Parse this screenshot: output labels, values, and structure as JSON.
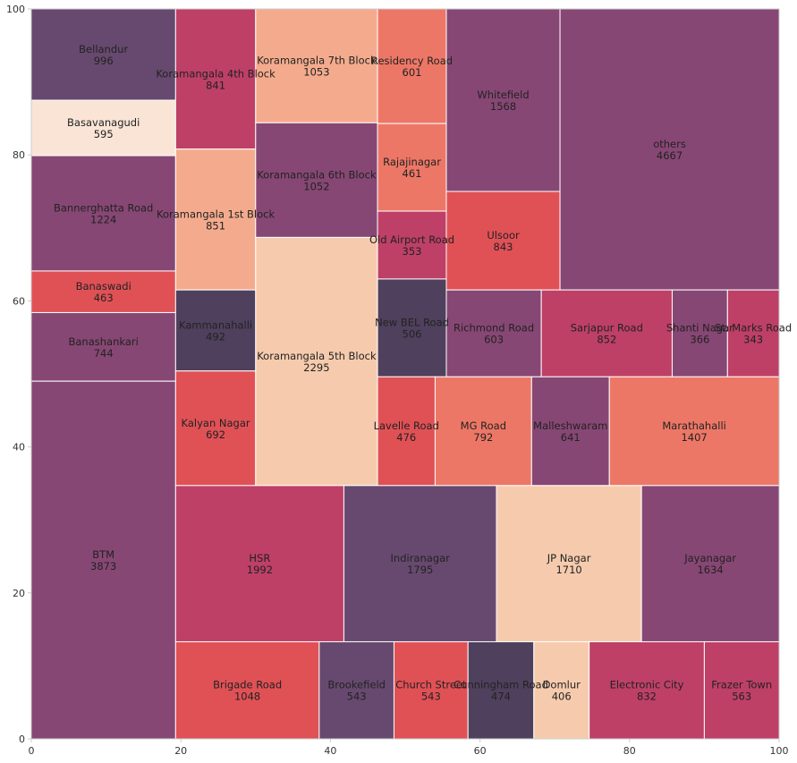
{
  "chart_data": {
    "type": "treemap",
    "xlim": [
      0,
      100
    ],
    "ylim": [
      0,
      100
    ],
    "xticks": [
      "0",
      "20",
      "40",
      "60",
      "80",
      "100"
    ],
    "yticks": [
      "0",
      "20",
      "40",
      "60",
      "80",
      "100"
    ],
    "grid": false,
    "colors": {
      "deep-purple": "#5a3a63",
      "dark-navy": "#40304f",
      "plum": "#7d3768",
      "magenta": "#b8305a",
      "red": "#dd4248",
      "coral": "#ec6b59",
      "salmon": "#f3a483",
      "peach": "#f5c7a6",
      "cream": "#f8e2d3"
    },
    "tiles": [
      {
        "label": "Bellandur",
        "value": 996,
        "x0": 0,
        "x1": 19.3,
        "y0": 87.5,
        "y1": 100,
        "color": "deep-purple"
      },
      {
        "label": "Basavanagudi",
        "value": 595,
        "x0": 0,
        "x1": 19.3,
        "y0": 79.9,
        "y1": 87.5,
        "color": "cream"
      },
      {
        "label": "Bannerghatta Road",
        "value": 1224,
        "x0": 0,
        "x1": 19.3,
        "y0": 64.1,
        "y1": 79.9,
        "color": "plum"
      },
      {
        "label": "Banaswadi",
        "value": 463,
        "x0": 0,
        "x1": 19.3,
        "y0": 58.4,
        "y1": 64.1,
        "color": "red"
      },
      {
        "label": "Banashankari",
        "value": 744,
        "x0": 0,
        "x1": 19.3,
        "y0": 49.0,
        "y1": 58.4,
        "color": "plum"
      },
      {
        "label": "BTM",
        "value": 3873,
        "x0": 0,
        "x1": 19.3,
        "y0": 0,
        "y1": 49.0,
        "color": "plum"
      },
      {
        "label": "Koramangala 4th Block",
        "value": 841,
        "x0": 19.3,
        "x1": 30.0,
        "y0": 80.8,
        "y1": 100,
        "color": "magenta"
      },
      {
        "label": "Koramangala 1st Block",
        "value": 851,
        "x0": 19.3,
        "x1": 30.0,
        "y0": 61.5,
        "y1": 80.8,
        "color": "salmon"
      },
      {
        "label": "Kammanahalli",
        "value": 492,
        "x0": 19.3,
        "x1": 30.0,
        "y0": 50.4,
        "y1": 61.5,
        "color": "dark-navy"
      },
      {
        "label": "Kalyan Nagar",
        "value": 692,
        "x0": 19.3,
        "x1": 30.0,
        "y0": 34.7,
        "y1": 50.4,
        "color": "red"
      },
      {
        "label": "Koramangala 7th Block",
        "value": 1053,
        "x0": 30.0,
        "x1": 46.3,
        "y0": 84.4,
        "y1": 100,
        "color": "salmon"
      },
      {
        "label": "Koramangala 6th Block",
        "value": 1052,
        "x0": 30.0,
        "x1": 46.3,
        "y0": 68.7,
        "y1": 84.4,
        "color": "plum"
      },
      {
        "label": "Koramangala 5th Block",
        "value": 2295,
        "x0": 30.0,
        "x1": 46.3,
        "y0": 34.7,
        "y1": 68.7,
        "color": "peach"
      },
      {
        "label": "Residency Road",
        "value": 601,
        "x0": 46.3,
        "x1": 55.5,
        "y0": 84.3,
        "y1": 100,
        "color": "coral"
      },
      {
        "label": "Rajajinagar",
        "value": 461,
        "x0": 46.3,
        "x1": 55.5,
        "y0": 72.3,
        "y1": 84.3,
        "color": "coral"
      },
      {
        "label": "Old Airport Road",
        "value": 353,
        "x0": 46.3,
        "x1": 55.5,
        "y0": 63.0,
        "y1": 72.3,
        "color": "magenta"
      },
      {
        "label": "New BEL Road",
        "value": 506,
        "x0": 46.3,
        "x1": 55.5,
        "y0": 49.6,
        "y1": 63.0,
        "color": "dark-navy"
      },
      {
        "label": "Whitefield",
        "value": 1568,
        "x0": 55.5,
        "x1": 70.7,
        "y0": 75.0,
        "y1": 100,
        "color": "plum"
      },
      {
        "label": "Ulsoor",
        "value": 843,
        "x0": 55.5,
        "x1": 70.7,
        "y0": 61.5,
        "y1": 75.0,
        "color": "red"
      },
      {
        "label": "others",
        "value": 4667,
        "x0": 70.7,
        "x1": 100,
        "y0": 61.5,
        "y1": 100,
        "color": "plum"
      },
      {
        "label": "Richmond Road",
        "value": 603,
        "x0": 55.5,
        "x1": 68.2,
        "y0": 49.6,
        "y1": 61.5,
        "color": "plum"
      },
      {
        "label": "Sarjapur Road",
        "value": 852,
        "x0": 68.2,
        "x1": 85.7,
        "y0": 49.6,
        "y1": 61.5,
        "color": "magenta"
      },
      {
        "label": "Shanti Nagar",
        "value": 366,
        "x0": 85.7,
        "x1": 93.1,
        "y0": 49.6,
        "y1": 61.5,
        "color": "plum"
      },
      {
        "label": "St. Marks Road",
        "value": 343,
        "x0": 93.1,
        "x1": 100,
        "y0": 49.6,
        "y1": 61.5,
        "color": "magenta"
      },
      {
        "label": "Lavelle Road",
        "value": 476,
        "x0": 46.3,
        "x1": 54.0,
        "y0": 34.7,
        "y1": 49.6,
        "color": "red"
      },
      {
        "label": "MG Road",
        "value": 792,
        "x0": 54.0,
        "x1": 66.9,
        "y0": 34.7,
        "y1": 49.6,
        "color": "coral"
      },
      {
        "label": "Malleshwaram",
        "value": 641,
        "x0": 66.9,
        "x1": 77.3,
        "y0": 34.7,
        "y1": 49.6,
        "color": "plum"
      },
      {
        "label": "Marathahalli",
        "value": 1407,
        "x0": 77.3,
        "x1": 100,
        "y0": 34.7,
        "y1": 49.6,
        "color": "coral"
      },
      {
        "label": "HSR",
        "value": 1992,
        "x0": 19.3,
        "x1": 41.8,
        "y0": 13.3,
        "y1": 34.7,
        "color": "magenta"
      },
      {
        "label": "Indiranagar",
        "value": 1795,
        "x0": 41.8,
        "x1": 62.2,
        "y0": 13.3,
        "y1": 34.7,
        "color": "deep-purple"
      },
      {
        "label": "JP Nagar",
        "value": 1710,
        "x0": 62.2,
        "x1": 81.6,
        "y0": 13.3,
        "y1": 34.7,
        "color": "peach"
      },
      {
        "label": "Jayanagar",
        "value": 1634,
        "x0": 81.6,
        "x1": 100,
        "y0": 13.3,
        "y1": 34.7,
        "color": "plum"
      },
      {
        "label": "Brigade Road",
        "value": 1048,
        "x0": 19.3,
        "x1": 38.5,
        "y0": 0,
        "y1": 13.3,
        "color": "red"
      },
      {
        "label": "Brookefield",
        "value": 543,
        "x0": 38.5,
        "x1": 48.5,
        "y0": 0,
        "y1": 13.3,
        "color": "deep-purple"
      },
      {
        "label": "Church Street",
        "value": 543,
        "x0": 48.5,
        "x1": 58.4,
        "y0": 0,
        "y1": 13.3,
        "color": "red"
      },
      {
        "label": "Cunningham Road",
        "value": 474,
        "x0": 58.4,
        "x1": 67.2,
        "y0": 0,
        "y1": 13.3,
        "color": "dark-navy"
      },
      {
        "label": "Domlur",
        "value": 406,
        "x0": 67.2,
        "x1": 74.6,
        "y0": 0,
        "y1": 13.3,
        "color": "peach"
      },
      {
        "label": "Electronic City",
        "value": 832,
        "x0": 74.6,
        "x1": 90.0,
        "y0": 0,
        "y1": 13.3,
        "color": "magenta"
      },
      {
        "label": "Frazer Town",
        "value": 563,
        "x0": 90.0,
        "x1": 100,
        "y0": 0,
        "y1": 13.3,
        "color": "magenta"
      }
    ]
  }
}
